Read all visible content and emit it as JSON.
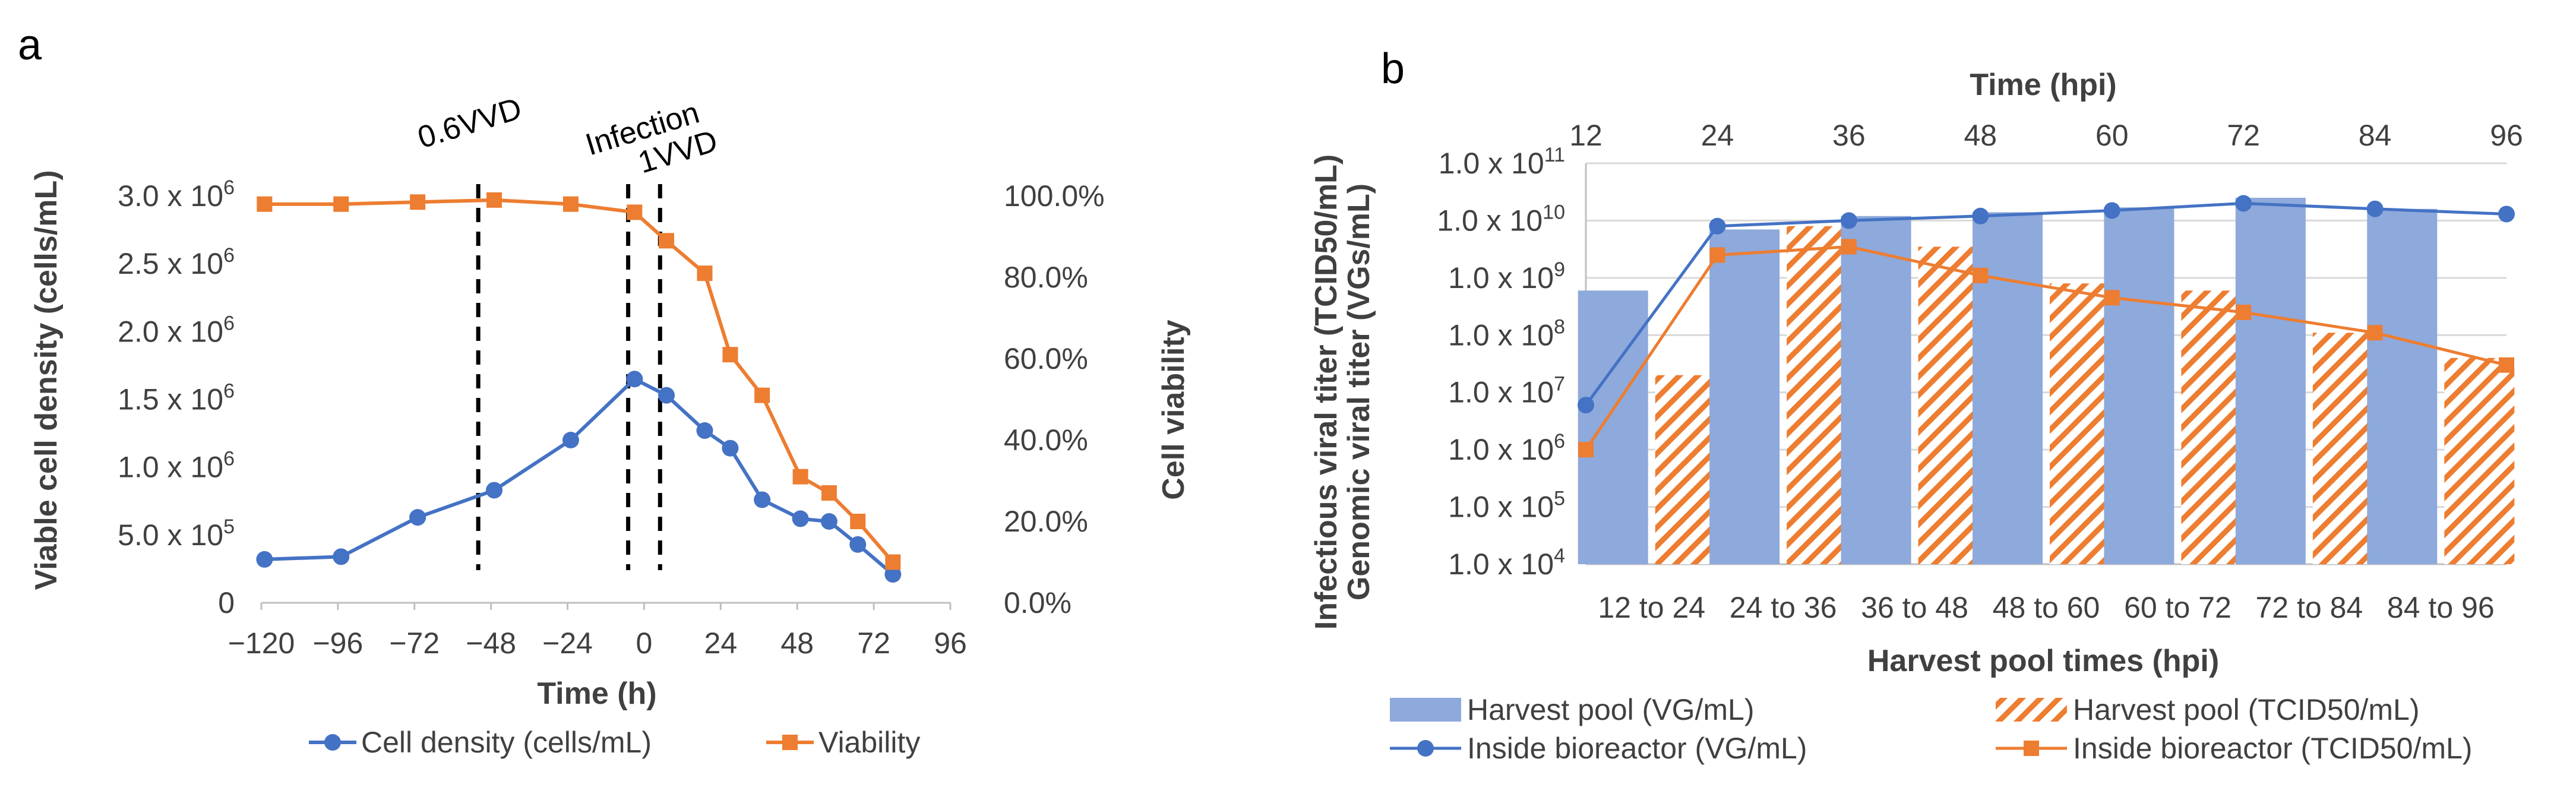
{
  "panel_a": {
    "letter": "a",
    "annotations": [
      "0.6VVD",
      "Infection",
      "1VVD"
    ]
  },
  "panel_b": {
    "letter": "b"
  },
  "chart_data": [
    {
      "type": "line",
      "title": "",
      "xlabel": "Time (h)",
      "ylabel": "Viable cell density (cells/mL)",
      "y2label": "Cell viability",
      "xlim": [
        -120,
        96
      ],
      "ylim": [
        0,
        3000000
      ],
      "y2lim": [
        0,
        100
      ],
      "xticks": [
        -120,
        -96,
        -72,
        -48,
        -24,
        0,
        24,
        48,
        72,
        96
      ],
      "xtick_labels": [
        "−120",
        "−96",
        "−72",
        "−48",
        "−24",
        "0",
        "24",
        "48",
        "72",
        "96"
      ],
      "yticks": [
        0,
        500000,
        1000000,
        1500000,
        2000000,
        2500000,
        3000000
      ],
      "ytick_labels": [
        {
          "mant": "0",
          "exp": ""
        },
        {
          "mant": "5.0 x 10",
          "exp": "5"
        },
        {
          "mant": "1.0 x 10",
          "exp": "6"
        },
        {
          "mant": "1.5 x 10",
          "exp": "6"
        },
        {
          "mant": "2.0 x 10",
          "exp": "6"
        },
        {
          "mant": "2.5 x 10",
          "exp": "6"
        },
        {
          "mant": "3.0 x 10",
          "exp": "6"
        }
      ],
      "y2ticks": [
        0,
        20,
        40,
        60,
        80,
        100
      ],
      "y2tick_labels": [
        "0.0%",
        "20.0%",
        "40.0%",
        "60.0%",
        "80.0%",
        "100.0%"
      ],
      "vlines": [
        {
          "x": -52,
          "label": "0.6VVD"
        },
        {
          "x": -5,
          "label": "Infection"
        },
        {
          "x": 5,
          "label": "1VVD"
        }
      ],
      "series": [
        {
          "name": "Cell density (cells/mL)",
          "axis": "left",
          "color": "#4472C4",
          "marker": "circle",
          "x": [
            -119,
            -95,
            -71,
            -47,
            -23,
            -3,
            7,
            19,
            27,
            37,
            49,
            58,
            67,
            78
          ],
          "y": [
            320000,
            340000,
            630000,
            830000,
            1200000,
            1650000,
            1530000,
            1270000,
            1140000,
            760000,
            620000,
            600000,
            430000,
            210000
          ]
        },
        {
          "name": "Viability",
          "axis": "right",
          "color": "#ED7D31",
          "marker": "square",
          "x": [
            -119,
            -95,
            -71,
            -47,
            -23,
            -3,
            7,
            19,
            27,
            37,
            49,
            58,
            67,
            78
          ],
          "y": [
            98,
            98,
            98.5,
            99,
            98,
            96,
            89,
            81,
            61,
            51,
            31,
            27,
            20,
            10
          ]
        }
      ],
      "legend": {
        "placement": "bottom",
        "entries": [
          "Cell density (cells/mL)",
          "Viability"
        ]
      }
    },
    {
      "type": "bar",
      "title": "",
      "xlabel": "Harvest pool times (hpi)",
      "x2label": "Time (hpi)",
      "ylabel": "Genomic viral titer (VGs/mL)",
      "ylabel2": "Infectious viral titer (TCID50/mL)",
      "yscale": "log",
      "ylim_exp": [
        4,
        11
      ],
      "ytick_labels": [
        {
          "mant": "1.0 x 10",
          "exp": "4"
        },
        {
          "mant": "1.0 x 10",
          "exp": "5"
        },
        {
          "mant": "1.0 x 10",
          "exp": "6"
        },
        {
          "mant": "1.0 x 10",
          "exp": "7"
        },
        {
          "mant": "1.0 x 10",
          "exp": "8"
        },
        {
          "mant": "1.0 x 10",
          "exp": "9"
        },
        {
          "mant": "1.0 x 10",
          "exp": "10"
        },
        {
          "mant": "1.0 x 10",
          "exp": "11"
        }
      ],
      "categories": [
        "12 to 24",
        "24 to 36",
        "36 to 48",
        "48 to 60",
        "60 to 72",
        "72 to 84",
        "84 to 96"
      ],
      "top_xticks": [
        "12",
        "24",
        "36",
        "48",
        "60",
        "72",
        "84",
        "96"
      ],
      "top_xlim": [
        12,
        96
      ],
      "series": [
        {
          "name": "Harvest pool (VG/mL)",
          "kind": "bar",
          "color": "#8EA9DB",
          "values": [
            600000000,
            7000000000,
            12000000000,
            14000000000,
            17000000000,
            25000000000,
            16000000000
          ]
        },
        {
          "name": "Harvest pool (TCID50/mL)",
          "kind": "bar-hatched",
          "color": "#ED7D31",
          "values": [
            20000000,
            8000000000,
            3500000000,
            800000000,
            600000000,
            110000000,
            40000000
          ]
        },
        {
          "name": "Inside bioreactor (VG/mL)",
          "kind": "line",
          "color": "#4472C4",
          "marker": "circle",
          "x": [
            12,
            24,
            36,
            48,
            60,
            72,
            84,
            96
          ],
          "values": [
            6000000,
            8000000000,
            10000000000,
            12000000000,
            15000000000,
            20000000000,
            16000000000,
            13000000000
          ]
        },
        {
          "name": "Inside bioreactor (TCID50/mL)",
          "kind": "line",
          "color": "#ED7D31",
          "marker": "square",
          "x": [
            12,
            24,
            36,
            48,
            60,
            72,
            84,
            96
          ],
          "values": [
            1000000,
            2500000000,
            3500000000,
            1100000000,
            450000000,
            250000000,
            110000000,
            30000000
          ]
        }
      ],
      "legend": {
        "placement": "bottom",
        "entries": [
          "Harvest pool (VG/mL)",
          "Harvest pool (TCID50/mL)",
          "Inside bioreactor (VG/mL)",
          "Inside bioreactor (TCID50/mL)"
        ]
      }
    }
  ]
}
